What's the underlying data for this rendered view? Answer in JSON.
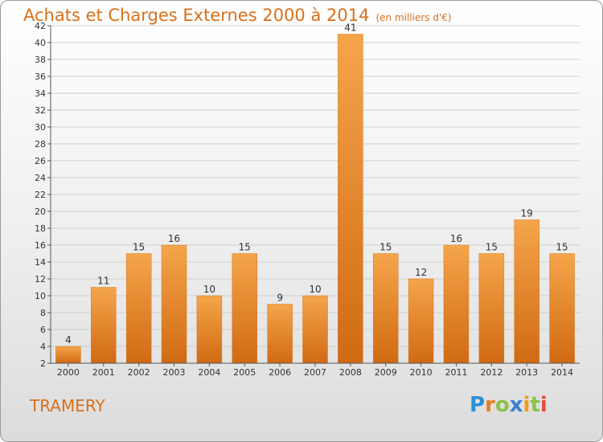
{
  "header": {
    "title": "Achats et Charges Externes 2000 à 2014",
    "unit": "(en milliers d'€)"
  },
  "footer": {
    "commune": "TRAMERY",
    "logo_text": "Proxiti"
  },
  "colors": {
    "accent": "#d9701a",
    "bar_top": "#f5a54a",
    "bar_bottom": "#d06a14",
    "grid": "#cfcfcf"
  },
  "chart_data": {
    "type": "bar",
    "title": "Achats et Charges Externes 2000 à 2014",
    "subtitle": "(en milliers d'€)",
    "categories": [
      "2000",
      "2001",
      "2002",
      "2003",
      "2004",
      "2005",
      "2006",
      "2007",
      "2008",
      "2009",
      "2010",
      "2011",
      "2012",
      "2013",
      "2014"
    ],
    "values": [
      4,
      11,
      15,
      16,
      10,
      15,
      9,
      10,
      41,
      15,
      12,
      16,
      15,
      19,
      15
    ],
    "ylim": [
      2,
      42
    ],
    "yticks": [
      2,
      4,
      6,
      8,
      10,
      12,
      14,
      16,
      18,
      20,
      22,
      24,
      26,
      28,
      30,
      32,
      34,
      36,
      38,
      40,
      42
    ],
    "grid": true,
    "data_labels": true
  }
}
